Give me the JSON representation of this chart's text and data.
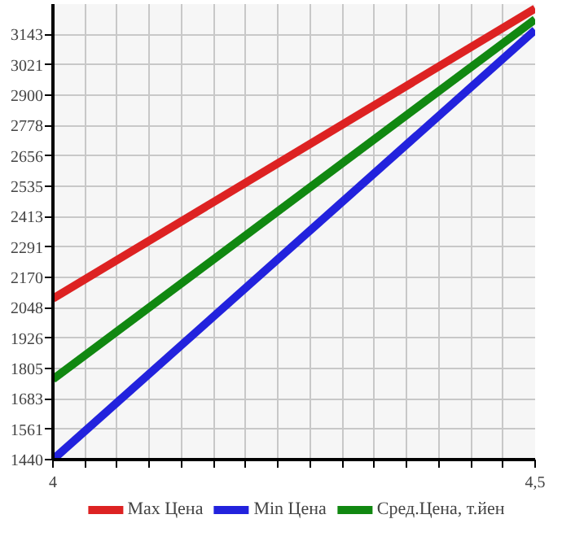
{
  "chart_data": {
    "type": "line",
    "x": [
      4,
      4.5
    ],
    "series": [
      {
        "name": "Max Цена",
        "color": "#dd2222",
        "values": [
          2085,
          3247
        ]
      },
      {
        "name": "Min Цена",
        "color": "#2222dd",
        "values": [
          1440,
          3161
        ]
      },
      {
        "name": "Сред.Цена, т.йен",
        "color": "#118811",
        "values": [
          1762,
          3204
        ]
      }
    ],
    "xlim": [
      4,
      4.5
    ],
    "xticks": [
      4,
      {
        "value": 4.0333,
        "label": null
      },
      {
        "value": 4.0667,
        "label": null
      },
      {
        "value": 4.1,
        "label": null
      },
      {
        "value": 4.1333,
        "label": null
      },
      {
        "value": 4.1667,
        "label": null
      },
      {
        "value": 4.2,
        "label": null
      },
      {
        "value": 4.2333,
        "label": null
      },
      {
        "value": 4.2667,
        "label": null
      },
      {
        "value": 4.3,
        "label": null
      },
      {
        "value": 4.3333,
        "label": null
      },
      {
        "value": 4.3667,
        "label": null
      },
      {
        "value": 4.4,
        "label": null
      },
      {
        "value": 4.4333,
        "label": null
      },
      {
        "value": 4.4667,
        "label": null
      },
      {
        "value": 4.5,
        "label": "4,5"
      }
    ],
    "ylim": [
      1440,
      3265
    ],
    "yticks": [
      1440,
      1561,
      1683,
      1805,
      1926,
      2048,
      2170,
      2291,
      2413,
      2535,
      2656,
      2778,
      2900,
      3021,
      3143
    ],
    "grid": true,
    "legend": "bottom",
    "marker": "none",
    "line_style": "solid"
  }
}
